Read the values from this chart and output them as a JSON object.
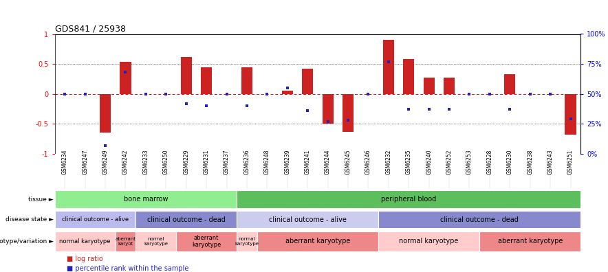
{
  "title": "GDS841 / 25938",
  "samples": [
    "GSM6234",
    "GSM6247",
    "GSM6249",
    "GSM6242",
    "GSM6233",
    "GSM6250",
    "GSM6229",
    "GSM6231",
    "GSM6237",
    "GSM6236",
    "GSM6248",
    "GSM6239",
    "GSM6241",
    "GSM6244",
    "GSM6245",
    "GSM6246",
    "GSM6232",
    "GSM6235",
    "GSM6240",
    "GSM6252",
    "GSM6253",
    "GSM6228",
    "GSM6230",
    "GSM6238",
    "GSM6243",
    "GSM6251"
  ],
  "log_ratio": [
    0.0,
    0.0,
    -0.65,
    0.53,
    0.0,
    0.0,
    0.62,
    0.44,
    0.0,
    0.44,
    0.0,
    0.05,
    0.42,
    -0.5,
    -0.63,
    0.0,
    0.9,
    0.58,
    0.27,
    0.27,
    0.0,
    0.0,
    0.33,
    0.0,
    0.0,
    -0.68
  ],
  "percentile_raw": [
    0.5,
    0.5,
    0.07,
    0.68,
    0.5,
    0.5,
    0.42,
    0.4,
    0.5,
    0.4,
    0.5,
    0.55,
    0.36,
    0.27,
    0.28,
    0.5,
    0.77,
    0.37,
    0.37,
    0.37,
    0.5,
    0.5,
    0.37,
    0.5,
    0.5,
    0.29
  ],
  "ylim": [
    -1,
    1
  ],
  "yticks": [
    -1,
    -0.5,
    0,
    0.5,
    1
  ],
  "ytick_labels": [
    "-1",
    "-0.5",
    "0",
    "0.5",
    "1"
  ],
  "right_yticks": [
    -1,
    -0.5,
    0,
    0.5,
    1.0
  ],
  "right_ytick_labels": [
    "0%",
    "25%",
    "50%",
    "75%",
    "100%"
  ],
  "tissue_row": [
    {
      "label": "bone marrow",
      "start": 0,
      "end": 9,
      "color": "#90EE90"
    },
    {
      "label": "peripheral blood",
      "start": 9,
      "end": 26,
      "color": "#5CBF5C"
    }
  ],
  "disease_row": [
    {
      "label": "clinical outcome - alive",
      "start": 0,
      "end": 4,
      "color": "#BBBBEE"
    },
    {
      "label": "clinical outcome - dead",
      "start": 4,
      "end": 9,
      "color": "#8888CC"
    },
    {
      "label": "clinical outcome - alive",
      "start": 9,
      "end": 16,
      "color": "#CCCCEE"
    },
    {
      "label": "clinical outcome - dead",
      "start": 16,
      "end": 26,
      "color": "#8888CC"
    }
  ],
  "geno_row": [
    {
      "label": "normal karyotype",
      "start": 0,
      "end": 3,
      "color": "#FFCCCC"
    },
    {
      "label": "aberrant\nkaryot",
      "start": 3,
      "end": 4,
      "color": "#EE8888"
    },
    {
      "label": "normal\nkaryotype",
      "start": 4,
      "end": 6,
      "color": "#FFCCCC"
    },
    {
      "label": "aberrant\nkaryotype",
      "start": 6,
      "end": 9,
      "color": "#EE8888"
    },
    {
      "label": "normal\nkaryotype",
      "start": 9,
      "end": 10,
      "color": "#FFCCCC"
    },
    {
      "label": "aberrant karyotype",
      "start": 10,
      "end": 16,
      "color": "#EE8888"
    },
    {
      "label": "normal karyotype",
      "start": 16,
      "end": 21,
      "color": "#FFCCCC"
    },
    {
      "label": "aberrant karyotype",
      "start": 21,
      "end": 26,
      "color": "#EE8888"
    }
  ],
  "bar_color": "#CC2222",
  "dot_color": "#2222BB",
  "bar_width": 0.55,
  "legend_bar_label": "log ratio",
  "legend_dot_label": "percentile rank within the sample"
}
